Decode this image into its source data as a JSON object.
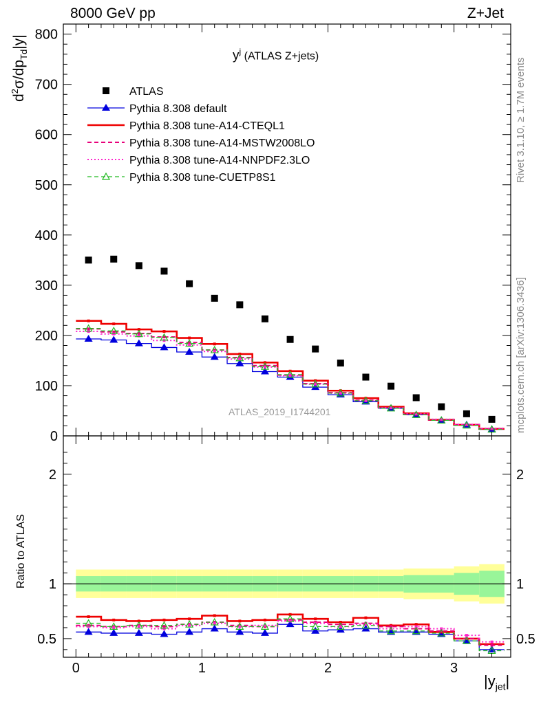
{
  "header": {
    "left_title": "8000 GeV pp",
    "right_title": "Z+Jet"
  },
  "side_labels": {
    "rivet": "Rivet 3.1.10, ≥ 1.7M events",
    "mcplots": "mcplots.cern.ch [arXiv:1306.3436]"
  },
  "main_panel": {
    "title_symbol": "y",
    "title_sup": "j",
    "title_suffix": " (ATLAS Z+jets)",
    "ylabel": "d²σ/dp_Td|y|",
    "analysis_id": "ATLAS_2019_I1744201"
  },
  "ratio_panel": {
    "ylabel": "Ratio to ATLAS"
  },
  "xaxis": {
    "label": "|y_jet|"
  },
  "colors": {
    "data": "#000000",
    "default": "#0000dd",
    "cteql1": "#ee0000",
    "mstw": "#e8007a",
    "nnpdf": "#ff22cc",
    "cuetp": "#22bb22",
    "band_inner": "#99f599",
    "band_outer": "#ffff99"
  },
  "chart_data": [
    {
      "type": "scatter",
      "title": "y^j (ATLAS Z+jets)",
      "xlabel": "|y_jet|",
      "ylabel": "d²σ/dp_Td|y|",
      "xlim": [
        -0.1,
        3.45
      ],
      "ylim": [
        0,
        820
      ],
      "x_ticks": [
        0,
        1,
        2,
        3
      ],
      "y_ticks": [
        0,
        100,
        200,
        300,
        400,
        500,
        600,
        700,
        800
      ],
      "x": [
        0.1,
        0.3,
        0.5,
        0.7,
        0.9,
        1.1,
        1.3,
        1.5,
        1.7,
        1.9,
        2.1,
        2.3,
        2.5,
        2.7,
        2.9,
        3.1,
        3.3
      ],
      "series": [
        {
          "name": "ATLAS",
          "key": "data",
          "marker": "square",
          "values": [
            350,
            352,
            339,
            328,
            303,
            274,
            261,
            233,
            192,
            173,
            145,
            117,
            99,
            76,
            58,
            44,
            33
          ]
        },
        {
          "name": "Pythia 8.308 default",
          "key": "default",
          "marker": "triangle",
          "values": [
            193,
            191,
            184,
            176,
            167,
            157,
            144,
            128,
            117,
            97,
            82,
            68,
            55,
            42,
            31,
            22,
            13
          ]
        },
        {
          "name": "Pythia 8.308 tune-A14-CTEQL1",
          "key": "cteql1",
          "marker": "none",
          "values": [
            229,
            223,
            212,
            208,
            195,
            183,
            163,
            146,
            129,
            110,
            90,
            75,
            58,
            45,
            32,
            22,
            14
          ]
        },
        {
          "name": "Pythia 8.308 tune-A14-MSTW2008LO",
          "key": "mstw",
          "marker": "none",
          "values": [
            213,
            207,
            204,
            197,
            186,
            171,
            156,
            140,
            121,
            104,
            86,
            71,
            56,
            43,
            32,
            22,
            14
          ]
        },
        {
          "name": "Pythia 8.308 tune-A14-NNPDF2.3LO",
          "key": "nnpdf",
          "marker": "none",
          "values": [
            208,
            203,
            199,
            190,
            181,
            168,
            153,
            137,
            120,
            103,
            85,
            70,
            56,
            44,
            33,
            23,
            15
          ]
        },
        {
          "name": "Pythia 8.308 tune-CUETP8S1",
          "key": "cuetp",
          "marker": "open-triangle",
          "values": [
            214,
            209,
            203,
            196,
            184,
            171,
            155,
            138,
            122,
            103,
            85,
            70,
            55,
            42,
            31,
            21,
            13
          ]
        }
      ]
    },
    {
      "type": "line",
      "ylabel": "Ratio to ATLAS",
      "xlim": [
        -0.1,
        3.45
      ],
      "ylim": [
        0.33,
        2.35
      ],
      "y_ticks": [
        0.5,
        1,
        2
      ],
      "x": [
        0.1,
        0.3,
        0.5,
        0.7,
        0.9,
        1.1,
        1.3,
        1.5,
        1.7,
        1.9,
        2.1,
        2.3,
        2.5,
        2.7,
        2.9,
        3.1,
        3.3
      ],
      "band_inner": [
        0.07,
        0.07,
        0.07,
        0.07,
        0.07,
        0.07,
        0.07,
        0.07,
        0.07,
        0.07,
        0.07,
        0.07,
        0.07,
        0.08,
        0.08,
        0.1,
        0.12
      ],
      "band_outer": [
        0.07,
        0.07,
        0.07,
        0.07,
        0.07,
        0.07,
        0.07,
        0.07,
        0.07,
        0.07,
        0.07,
        0.07,
        0.07,
        0.08,
        0.08,
        0.1,
        0.12
      ],
      "series": [
        {
          "name": "Pythia 8.308 default",
          "key": "default",
          "values": [
            0.56,
            0.55,
            0.55,
            0.54,
            0.56,
            0.59,
            0.56,
            0.55,
            0.63,
            0.57,
            0.58,
            0.59,
            0.56,
            0.56,
            0.54,
            0.48,
            0.4
          ]
        },
        {
          "name": "Pythia 8.308 tune-A14-CTEQL1",
          "key": "cteql1",
          "values": [
            0.7,
            0.67,
            0.66,
            0.67,
            0.68,
            0.71,
            0.66,
            0.67,
            0.72,
            0.68,
            0.65,
            0.69,
            0.62,
            0.63,
            0.56,
            0.5,
            0.45
          ]
        },
        {
          "name": "Pythia 8.308 tune-A14-MSTW2008LO",
          "key": "mstw",
          "values": [
            0.62,
            0.61,
            0.62,
            0.61,
            0.63,
            0.65,
            0.62,
            0.61,
            0.67,
            0.65,
            0.63,
            0.64,
            0.61,
            0.59,
            0.57,
            0.5,
            0.44
          ]
        },
        {
          "name": "Pythia 8.308 tune-A14-NNPDF2.3LO",
          "key": "nnpdf",
          "values": [
            0.61,
            0.6,
            0.61,
            0.59,
            0.62,
            0.64,
            0.61,
            0.62,
            0.66,
            0.64,
            0.61,
            0.63,
            0.59,
            0.61,
            0.59,
            0.53,
            0.47
          ]
        },
        {
          "name": "Pythia 8.308 tune-CUETP8S1",
          "key": "cuetp",
          "values": [
            0.64,
            0.61,
            0.62,
            0.62,
            0.63,
            0.65,
            0.61,
            0.61,
            0.68,
            0.61,
            0.61,
            0.62,
            0.57,
            0.57,
            0.55,
            0.48,
            0.39
          ]
        }
      ]
    }
  ]
}
